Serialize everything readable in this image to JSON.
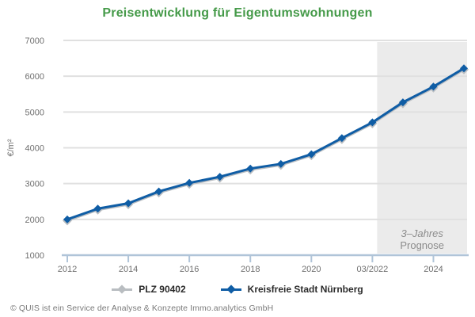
{
  "title": "Preisentwicklung für Eigentumswohnungen",
  "colors": {
    "background": "#ffffff",
    "title": "#459a49",
    "grid": "#e0e0e0",
    "axis": "#b0c4d8",
    "tick_text": "#6f6f6f",
    "forecast_bg": "#ebebeb",
    "forecast_text": "#8c8c8c",
    "legend_text": "#2b2b2b",
    "copyright_text": "#7a7a7a",
    "series_plz": "#b9bdc1",
    "series_city": "#0f5da5"
  },
  "chart_data": {
    "type": "line",
    "title": "Preisentwicklung für Eigentumswohnungen",
    "xlabel": "",
    "ylabel": "€/m²",
    "ylim": [
      1000,
      7000
    ],
    "y_ticks": [
      1000,
      2000,
      3000,
      4000,
      5000,
      6000,
      7000
    ],
    "x": [
      "2012",
      "2013",
      "2014",
      "2015",
      "2016",
      "2017",
      "2018",
      "2019",
      "2020",
      "2021",
      "03/2022",
      "2023",
      "2024",
      "2025"
    ],
    "x_tick_indices": [
      0,
      2,
      4,
      6,
      8,
      10,
      12
    ],
    "x_tick_labels": [
      "2012",
      "2014",
      "2016",
      "2018",
      "2020",
      "03/2022",
      "2024"
    ],
    "grid": "horizontal",
    "legend_position": "bottom",
    "series": [
      {
        "name": "PLZ 90402",
        "color": "#b9bdc1",
        "marker": "diamond",
        "values": [
          2000,
          2300,
          2450,
          2780,
          3020,
          3190,
          3420,
          3550,
          3820,
          4270,
          4710,
          5270,
          5710,
          6220
        ]
      },
      {
        "name": "Kreisfreie Stadt Nürnberg",
        "color": "#0f5da5",
        "marker": "diamond",
        "values": [
          2000,
          2300,
          2450,
          2780,
          3020,
          3190,
          3420,
          3550,
          3820,
          4270,
          4710,
          5270,
          5710,
          6220
        ]
      }
    ],
    "forecast": {
      "start_index": 10,
      "label_line1": "3–Jahres",
      "label_line2": "Prognose"
    }
  },
  "footer": {
    "copyright": "© QUIS ist ein Service der Analyse & Konzepte Immo.analytics GmbH"
  }
}
